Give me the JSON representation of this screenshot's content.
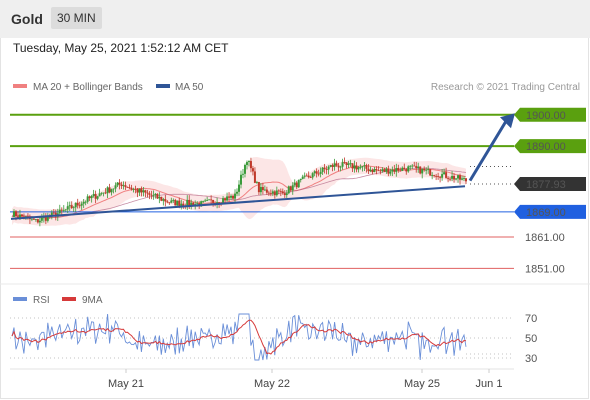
{
  "header": {
    "title": "Gold",
    "timeframe": "30 MIN"
  },
  "timestamp": "Tuesday, May 25, 2021 1:52:12 AM CET",
  "source": "Research © 2021 Trading Central",
  "colors": {
    "ma20": "#f08080",
    "ma50": "#2f5597",
    "green": "#5aa00f",
    "blue": "#2060e0",
    "red": "#e06060",
    "dark": "#333333",
    "rsi": "#6a8fd8",
    "rsi_ma": "#d63a3a"
  },
  "chart_data": [
    {
      "type": "candlestick",
      "legend": [
        {
          "name": "MA 20 + Bollinger Bands",
          "color": "#f08080"
        },
        {
          "name": "MA 50",
          "color": "#2f5597"
        }
      ],
      "ylim": [
        1846,
        1906
      ],
      "levels": [
        {
          "label": "1900.00",
          "value": 1900.0,
          "style": "green"
        },
        {
          "label": "1890.00",
          "value": 1890.0,
          "style": "green"
        },
        {
          "label": "1877.93",
          "value": 1877.93,
          "style": "current"
        },
        {
          "label": "1869.00",
          "value": 1869.0,
          "style": "blue"
        },
        {
          "label": "1861.00",
          "value": 1861.0,
          "style": "red"
        },
        {
          "label": "1851.00",
          "value": 1851.0,
          "style": "red"
        }
      ],
      "x_labels": [
        "May 21",
        "May 22",
        "May 25",
        "Jun 1"
      ]
    },
    {
      "type": "line",
      "legend": [
        {
          "name": "RSI",
          "color": "#6a8fd8"
        },
        {
          "name": "9MA",
          "color": "#d63a3a"
        }
      ],
      "ylim": [
        20,
        80
      ],
      "ticks": [
        "70",
        "50",
        "30"
      ]
    }
  ]
}
